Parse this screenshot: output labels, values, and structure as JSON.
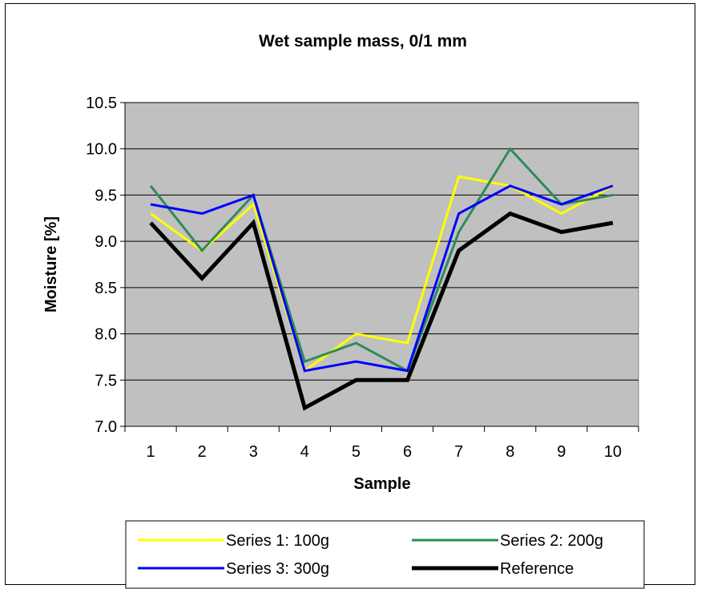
{
  "chart_data": {
    "type": "line",
    "title": "Wet sample mass, 0/1 mm",
    "xlabel": "Sample",
    "ylabel": "Moisture [%]",
    "categories": [
      "1",
      "2",
      "3",
      "4",
      "5",
      "6",
      "7",
      "8",
      "9",
      "10"
    ],
    "ylim": [
      7.0,
      10.5
    ],
    "yticks": [
      "7.0",
      "7.5",
      "8.0",
      "8.5",
      "9.0",
      "9.5",
      "10.0",
      "10.5"
    ],
    "grid": true,
    "plot_background": "#c0c0c0",
    "legend_position": "bottom",
    "series": [
      {
        "name": "Series 1: 100g",
        "color": "#ffff00",
        "values": [
          9.3,
          8.9,
          9.4,
          7.6,
          8.0,
          7.9,
          9.7,
          9.6,
          9.3,
          9.6
        ]
      },
      {
        "name": "Series 2: 200g",
        "color": "#2e8b57",
        "values": [
          9.6,
          8.9,
          9.5,
          7.7,
          7.9,
          7.6,
          9.1,
          10.0,
          9.4,
          9.5
        ]
      },
      {
        "name": "Series 3: 300g",
        "color": "#0000ff",
        "values": [
          9.4,
          9.3,
          9.5,
          7.6,
          7.7,
          7.6,
          9.3,
          9.6,
          9.4,
          9.6
        ]
      },
      {
        "name": "Reference",
        "color": "#000000",
        "values": [
          9.2,
          8.6,
          9.2,
          7.2,
          7.5,
          7.5,
          8.9,
          9.3,
          9.1,
          9.2
        ]
      }
    ]
  }
}
